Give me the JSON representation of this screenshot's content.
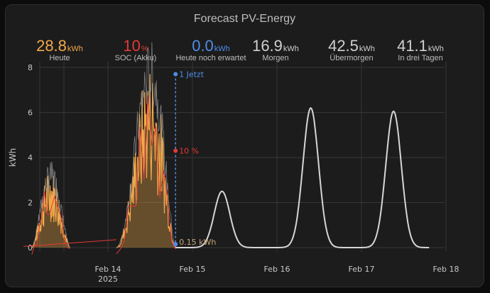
{
  "title": "Forecast PV-Energy",
  "stats": [
    {
      "value": "28.8",
      "unit": "kWh",
      "label": "Heute",
      "color": "#f2a94b"
    },
    {
      "value": "10",
      "unit": "%",
      "label": "SOC (Akku)",
      "color": "#e53935"
    },
    {
      "value": "0.0",
      "unit": "kWh",
      "label": "Heute noch erwartet",
      "color": "#4f8ee8"
    },
    {
      "value": "16.9",
      "unit": "kWh",
      "label": "Morgen",
      "color": "#d0d0d0"
    },
    {
      "value": "42.5",
      "unit": "kWh",
      "label": "Übermorgen",
      "color": "#d0d0d0"
    },
    {
      "value": "41.1",
      "unit": "kWh",
      "label": "In drei Tagen",
      "color": "#d0d0d0"
    }
  ],
  "chart_data": {
    "type": "line",
    "ylabel": "kWh",
    "ylim": [
      0,
      8
    ],
    "yticks": [
      0,
      2,
      4,
      6,
      8
    ],
    "xticks": [
      {
        "day": 1,
        "label": "Feb 14",
        "sub": "2025"
      },
      {
        "day": 2,
        "label": "Feb 15",
        "sub": ""
      },
      {
        "day": 3,
        "label": "Feb 16",
        "sub": ""
      },
      {
        "day": 4,
        "label": "Feb 17",
        "sub": ""
      },
      {
        "day": 5,
        "label": "Feb 18",
        "sub": ""
      }
    ],
    "grid": true,
    "now_marker": {
      "day": 1.8,
      "label": "1 Jetzt"
    },
    "soc_marker": {
      "day": 1.8,
      "value": 4.3,
      "label": "10 %"
    },
    "remaining_marker": {
      "day": 1.8,
      "value": 0.15,
      "label": "0.15 kWh"
    },
    "forecast_days": [
      {
        "day_peak": 2.35,
        "peak": 2.5
      },
      {
        "day_peak": 3.4,
        "peak": 6.2
      },
      {
        "day_peak": 4.38,
        "peak": 6.05
      }
    ],
    "actual_days": [
      {
        "start": 0.1,
        "end": 0.55,
        "peak": 3.2
      },
      {
        "start": 1.1,
        "end": 1.8,
        "peak": 7.7
      }
    ],
    "colors": {
      "actual": "#f2a94b",
      "soc": "#e53935",
      "forecast": "#d6d6d6",
      "now": "#4f8ee8",
      "grid": "#363636"
    }
  }
}
